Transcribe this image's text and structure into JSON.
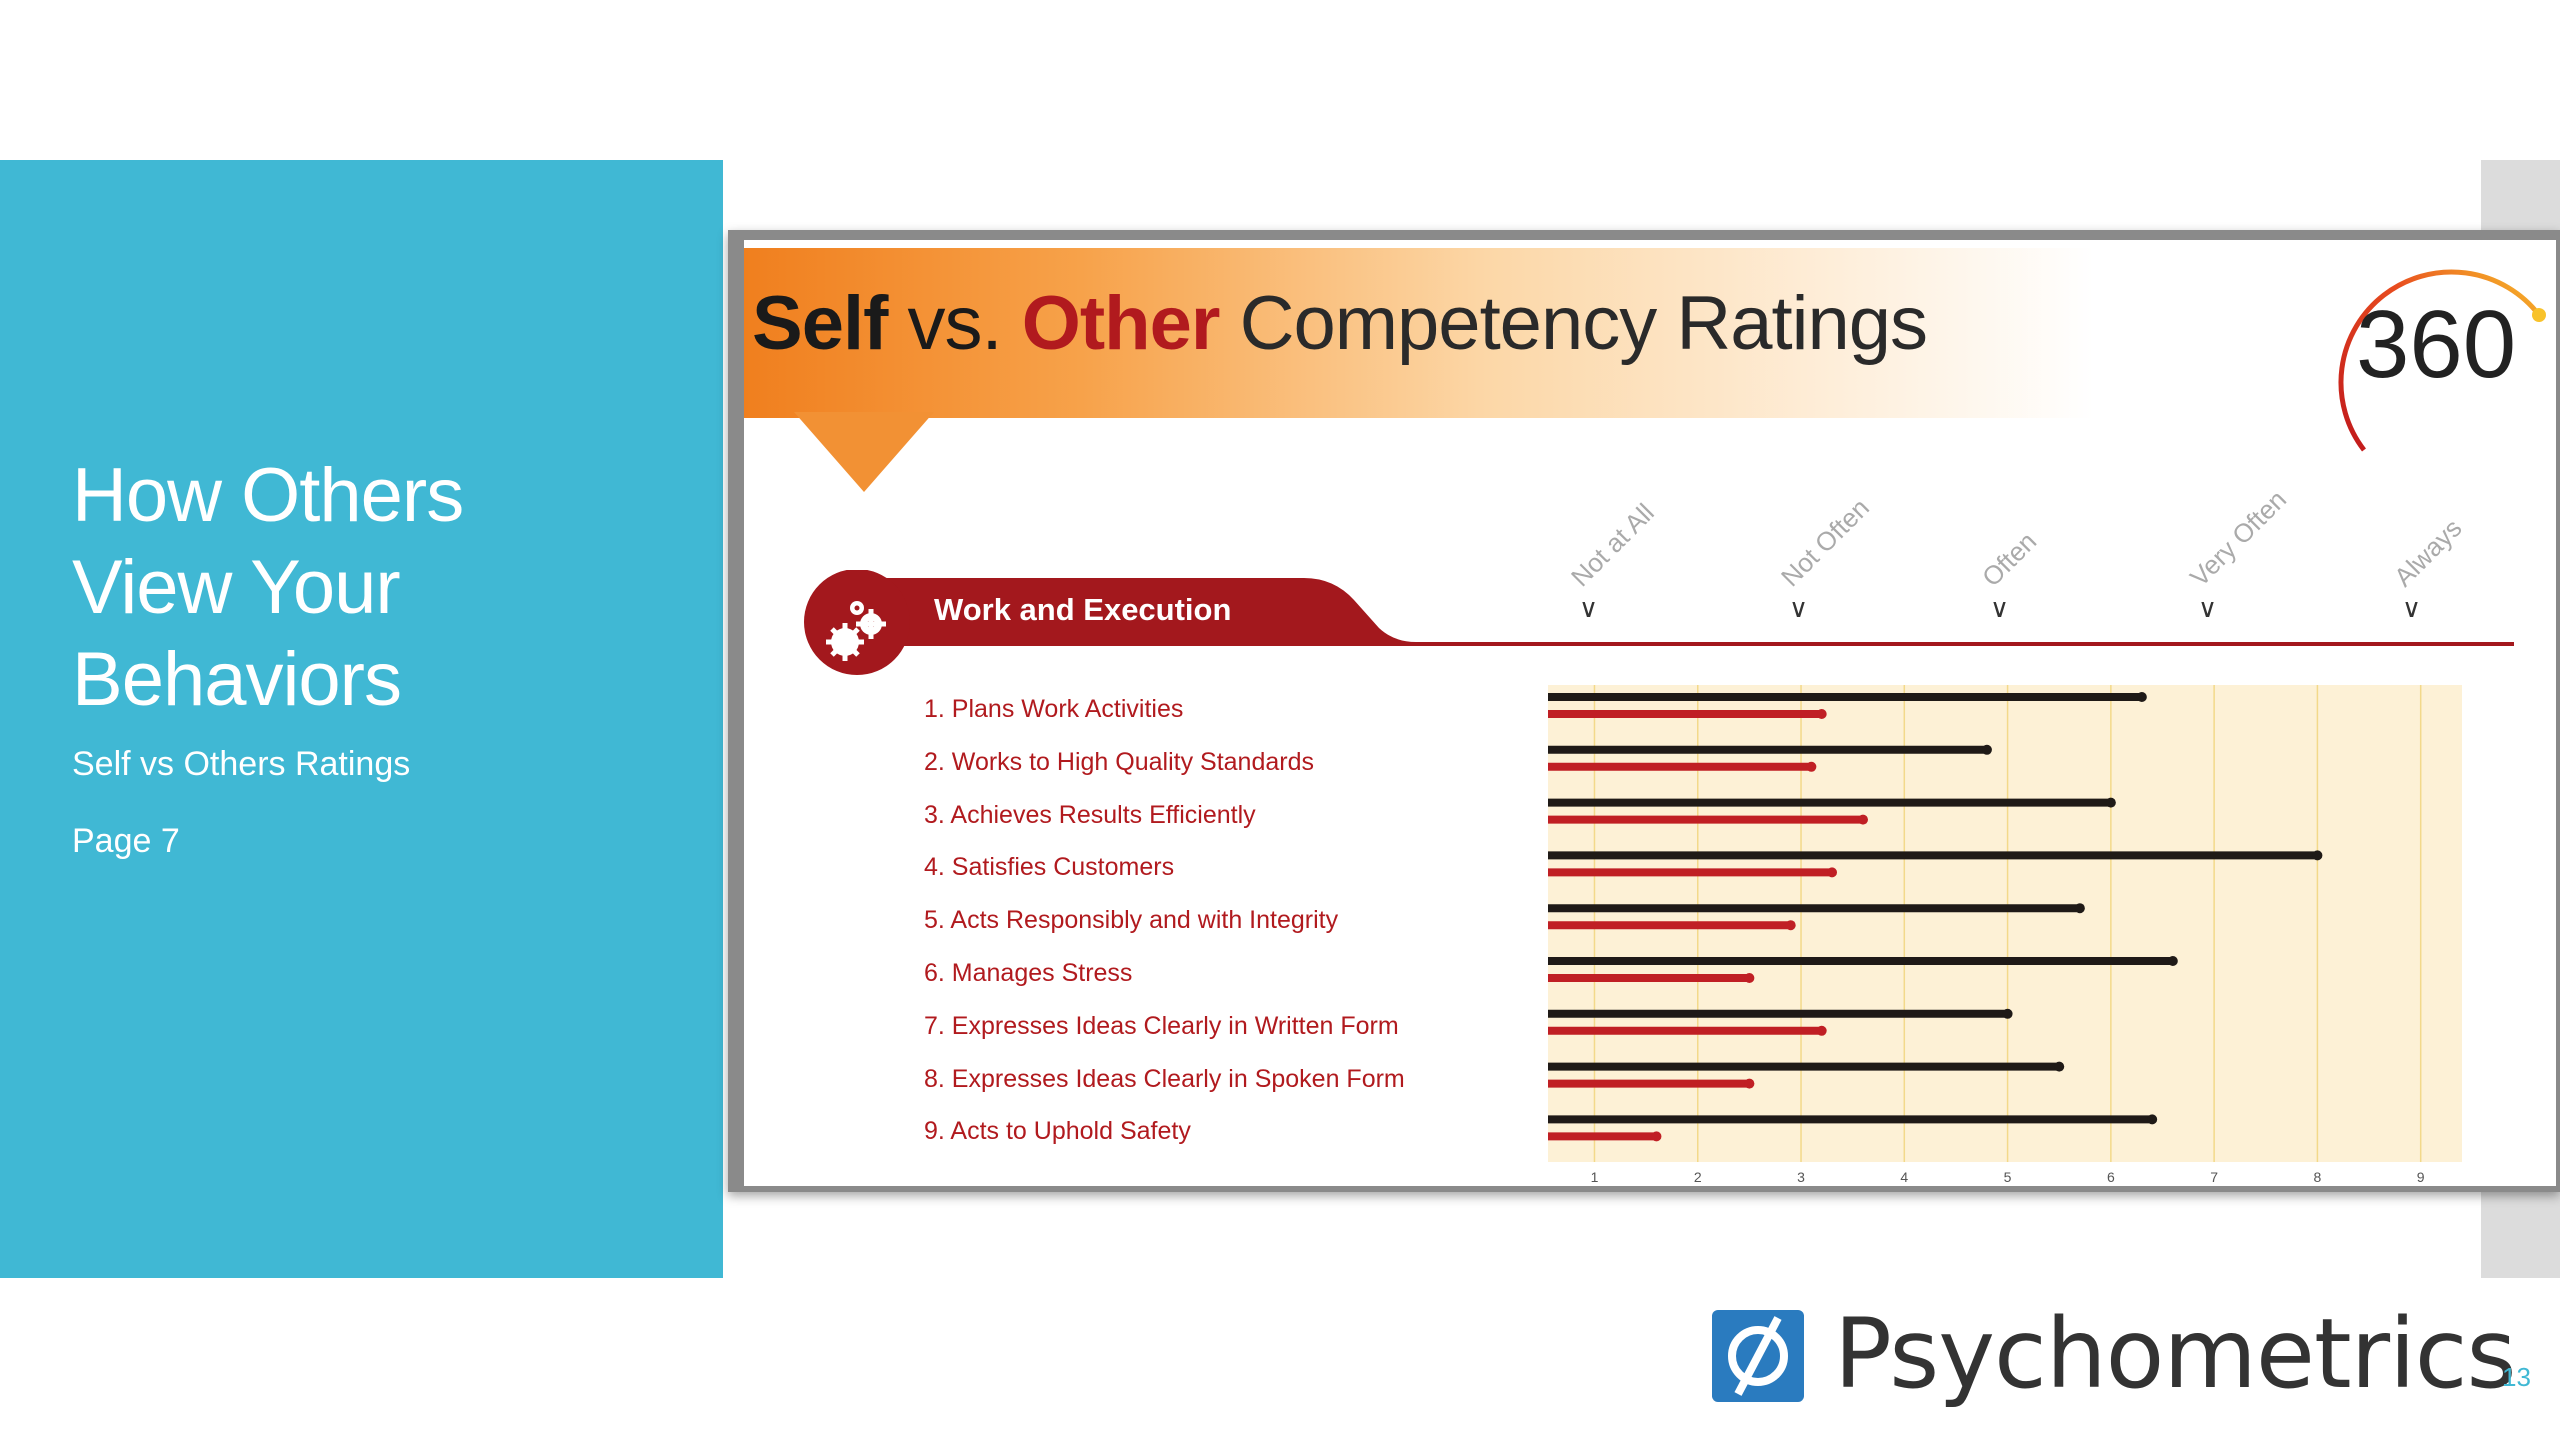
{
  "slide": {
    "title_lines": [
      "How Others",
      "View Your",
      "Behaviors"
    ],
    "subtitle": "Self vs Others Ratings",
    "page_ref": "Page 7",
    "slide_number": "13",
    "accent": "#40b8d4"
  },
  "report": {
    "title_self": "Self",
    "title_vs": " vs. ",
    "title_other": "Other",
    "title_rest": " Competency Ratings",
    "logo_text": "360",
    "section_label": "Work and Execution",
    "section_icon": "gears-icon",
    "scale_labels": [
      "Not at All",
      "Not Often",
      "Often",
      "Very Often",
      "Always"
    ]
  },
  "brand": {
    "name": "Psychometrics",
    "logo_icon": "psychometrics-phi-icon"
  },
  "colors": {
    "others_bar": "#1f1a17",
    "self_bar": "#c01f24",
    "chart_bg": "#fdf1d6",
    "section_red": "#a3181d"
  },
  "chart_data": {
    "type": "bar",
    "orientation": "horizontal",
    "categories": [
      "1. Plans Work Activities",
      "2. Works to High Quality Standards",
      "3. Achieves Results Efficiently",
      "4. Satisfies Customers",
      "5. Acts Responsibly and with Integrity",
      "6. Manages Stress",
      "7. Expresses Ideas Clearly in Written Form",
      "8. Expresses Ideas Clearly in Spoken Form",
      "9. Acts to Uphold Safety"
    ],
    "series": [
      {
        "values": [
          6.3,
          4.8,
          6.0,
          8.0,
          5.7,
          6.6,
          5.0,
          5.5,
          6.4
        ]
      },
      {
        "values": [
          3.2,
          3.1,
          3.6,
          3.3,
          2.9,
          2.5,
          3.2,
          2.5,
          1.6
        ]
      }
    ],
    "xticks": [
      1,
      2,
      3,
      4,
      5,
      6,
      7,
      8,
      9
    ],
    "xlim": [
      0.55,
      9.4
    ],
    "grid": true
  }
}
